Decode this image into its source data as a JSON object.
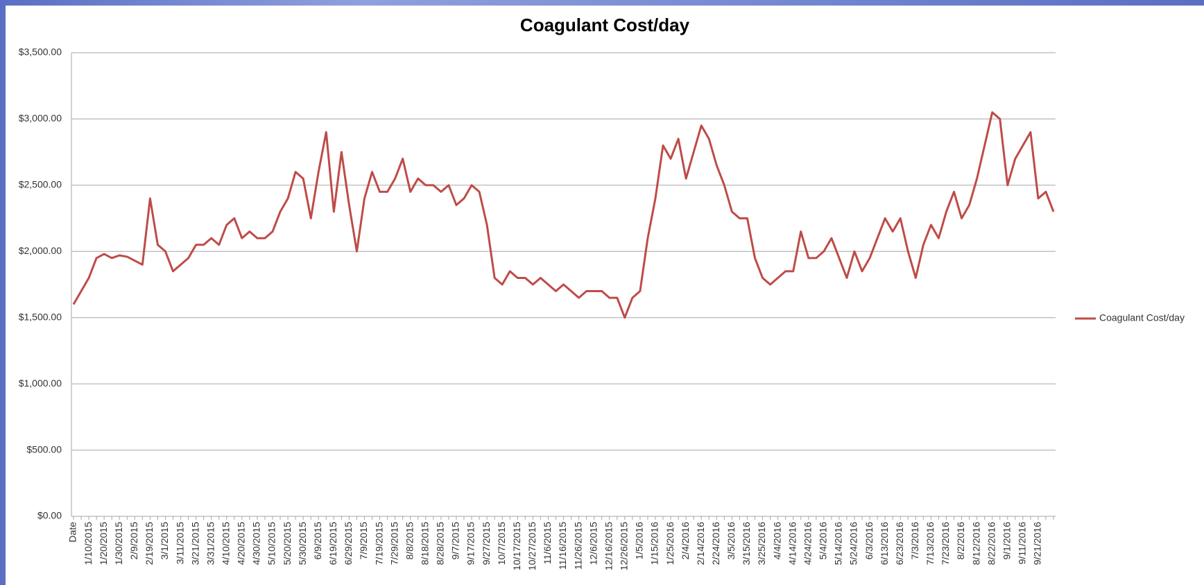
{
  "chart_data": {
    "type": "line",
    "title": "Coagulant Cost/day",
    "categories": [
      "Date",
      null,
      "1/10/2015",
      null,
      "1/20/2015",
      null,
      "1/30/2015",
      null,
      "2/9/2015",
      null,
      "2/19/2015",
      null,
      "3/1/2015",
      null,
      "3/11/2015",
      null,
      "3/21/2015",
      null,
      "3/31/2015",
      null,
      "4/10/2015",
      null,
      "4/20/2015",
      null,
      "4/30/2015",
      null,
      "5/10/2015",
      null,
      "5/20/2015",
      null,
      "5/30/2015",
      null,
      "6/9/2015",
      null,
      "6/19/2015",
      null,
      "6/29/2015",
      null,
      "7/9/2015",
      null,
      "7/19/2015",
      null,
      "7/29/2015",
      null,
      "8/8/2015",
      null,
      "8/18/2015",
      null,
      "8/28/2015",
      null,
      "9/7/2015",
      null,
      "9/17/2015",
      null,
      "9/27/2015",
      null,
      "10/7/2015",
      null,
      "10/17/2015",
      null,
      "10/27/2015",
      null,
      "11/6/2015",
      null,
      "11/16/2015",
      null,
      "11/26/2015",
      null,
      "12/6/2015",
      null,
      "12/16/2015",
      null,
      "12/26/2015",
      null,
      "1/5/2016",
      null,
      "1/15/2016",
      null,
      "1/25/2016",
      null,
      "2/4/2016",
      null,
      "2/14/2016",
      null,
      "2/24/2016",
      null,
      "3/5/2016",
      null,
      "3/15/2016",
      null,
      "3/25/2016",
      null,
      "4/4/2016",
      null,
      "4/14/2016",
      null,
      "4/24/2016",
      null,
      "5/4/2016",
      null,
      "5/14/2016",
      null,
      "5/24/2016",
      null,
      "6/3/2016",
      null,
      "6/13/2016",
      null,
      "6/23/2016",
      null,
      "7/3/2016",
      null,
      "7/13/2016",
      null,
      "7/23/2016",
      null,
      "8/2/2016",
      null,
      "8/12/2016",
      null,
      "8/22/2016",
      null,
      "9/1/2016",
      null,
      "9/11/2016",
      null,
      "9/21/2016",
      null,
      null
    ],
    "series": [
      {
        "name": "Coagulant Cost/day",
        "color": "#be4b48",
        "values": [
          1600,
          1700,
          1800,
          1950,
          1980,
          1950,
          1970,
          1960,
          1930,
          1900,
          2400,
          2050,
          2000,
          1850,
          1900,
          1950,
          2050,
          2050,
          2100,
          2050,
          2200,
          2250,
          2100,
          2150,
          2100,
          2100,
          2150,
          2300,
          2400,
          2600,
          2550,
          2250,
          2600,
          2900,
          2300,
          2750,
          2350,
          2000,
          2400,
          2600,
          2450,
          2450,
          2550,
          2700,
          2450,
          2550,
          2500,
          2500,
          2450,
          2500,
          2350,
          2400,
          2500,
          2450,
          2200,
          1800,
          1750,
          1850,
          1800,
          1800,
          1750,
          1800,
          1750,
          1700,
          1750,
          1700,
          1650,
          1700,
          1700,
          1700,
          1650,
          1650,
          1500,
          1650,
          1700,
          2100,
          2400,
          2800,
          2700,
          2850,
          2550,
          2750,
          2950,
          2850,
          2650,
          2500,
          2300,
          2250,
          2250,
          1950,
          1800,
          1750,
          1800,
          1850,
          1850,
          2150,
          1950,
          1950,
          2000,
          2100,
          1950,
          1800,
          2000,
          1850,
          1950,
          2100,
          2250,
          2150,
          2250,
          2000,
          1800,
          2050,
          2200,
          2100,
          2300,
          2450,
          2250,
          2350,
          2550,
          2800,
          3050,
          3000,
          2500,
          2700,
          2800,
          2900,
          2400,
          2450,
          2300
        ]
      }
    ],
    "ylim": [
      0,
      3500
    ],
    "yticks": [
      {
        "value": 0,
        "label": "$0.00"
      },
      {
        "value": 500,
        "label": "$500.00"
      },
      {
        "value": 1000,
        "label": "$1,000.00"
      },
      {
        "value": 1500,
        "label": "$1,500.00"
      },
      {
        "value": 2000,
        "label": "$2,000.00"
      },
      {
        "value": 2500,
        "label": "$2,500.00"
      },
      {
        "value": 3000,
        "label": "$3,000.00"
      },
      {
        "value": 3500,
        "label": "$3,500.00"
      }
    ],
    "grid": true,
    "legend": "right"
  }
}
